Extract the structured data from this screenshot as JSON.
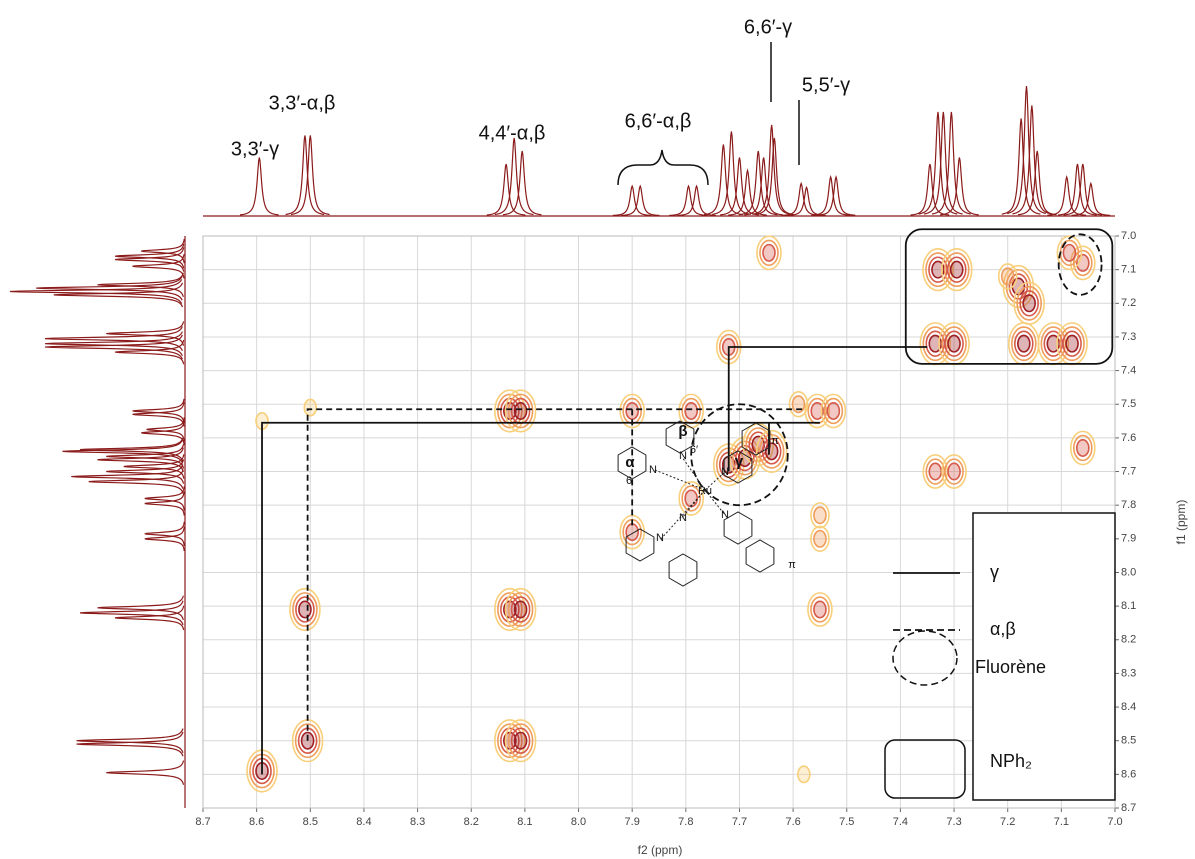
{
  "chart_data": {
    "type": "contour",
    "x_label": "f2 (ppm)",
    "y_label": "f1 (ppm)",
    "xlim": [
      8.7,
      7.0
    ],
    "ylim": [
      7.0,
      8.7
    ],
    "xticks": [
      8.7,
      8.6,
      8.5,
      8.4,
      8.3,
      8.2,
      8.1,
      {
        "value": 8,
        "label": "8.0"
      },
      7.9,
      7.8,
      7.7,
      7.6,
      7.5,
      7.4,
      7.3,
      7.2,
      7.1,
      {
        "value": 7,
        "label": "7.0"
      }
    ],
    "yticks": [
      {
        "value": 7,
        "label": "7.0"
      },
      7.1,
      7.2,
      7.3,
      7.4,
      7.5,
      7.6,
      7.7,
      7.8,
      7.9,
      {
        "value": 8,
        "label": "8.0"
      },
      8.1,
      8.2,
      8.3,
      8.4,
      8.5,
      8.6,
      8.7
    ],
    "grid": true,
    "peaks": {
      "x": [
        8.59,
        8.505,
        8.51,
        8.128,
        8.108,
        8.128,
        8.108,
        8.128,
        8.108,
        8.59,
        8.5,
        7.9,
        7.9,
        7.79,
        7.79,
        7.72,
        7.645,
        7.72,
        7.69,
        7.665,
        7.64,
        7.555,
        7.525,
        7.55,
        7.55,
        7.55,
        7.33,
        7.295,
        7.335,
        7.3,
        7.335,
        7.3,
        7.18,
        7.16,
        7.17,
        7.115,
        7.08,
        7.06,
        7.06,
        7.085,
        7.2,
        7.59,
        7.58
      ],
      "y": [
        8.59,
        8.5,
        8.11,
        8.11,
        8.11,
        8.5,
        8.5,
        7.52,
        7.52,
        7.55,
        7.51,
        7.52,
        7.88,
        7.52,
        7.78,
        7.33,
        7.05,
        7.68,
        7.66,
        7.62,
        7.64,
        7.52,
        7.52,
        7.83,
        7.9,
        8.11,
        7.1,
        7.1,
        7.32,
        7.32,
        7.7,
        7.7,
        7.15,
        7.2,
        7.32,
        7.32,
        7.32,
        7.08,
        7.63,
        7.05,
        7.12,
        7.5,
        8.6
      ],
      "intensity": [
        4,
        4,
        4,
        4,
        4,
        4,
        4,
        4,
        4,
        1,
        1,
        3,
        3,
        3,
        3,
        3,
        3,
        4,
        4,
        4,
        4,
        3,
        3,
        2,
        2,
        3,
        4,
        4,
        4,
        4,
        3,
        3,
        4,
        4,
        4,
        4,
        4,
        3,
        3,
        3,
        2,
        2,
        1
      ]
    },
    "contour_colors": [
      "#f8cf7a",
      "#ef9d5a",
      "#d65a4a",
      "#9e1f25"
    ],
    "projection": {
      "color": "#8b1a1a",
      "ppm": [
        8.595,
        8.51,
        8.5,
        8.135,
        8.12,
        8.105,
        7.9,
        7.885,
        7.795,
        7.78,
        7.73,
        7.715,
        7.7,
        7.685,
        7.665,
        7.655,
        7.64,
        7.635,
        7.585,
        7.575,
        7.53,
        7.52,
        7.345,
        7.33,
        7.32,
        7.305,
        7.29,
        7.175,
        7.165,
        7.155,
        7.145,
        7.09,
        7.07,
        7.06,
        7.045
      ],
      "intensity": [
        45,
        62,
        62,
        40,
        60,
        50,
        23,
        23,
        23,
        23,
        55,
        65,
        45,
        35,
        50,
        45,
        70,
        60,
        25,
        22,
        30,
        30,
        40,
        80,
        80,
        80,
        45,
        75,
        100,
        85,
        50,
        30,
        40,
        40,
        25
      ]
    },
    "connections": [
      {
        "style": "solid",
        "x": [
          8.59,
          8.59,
          7.55
        ],
        "y": [
          8.6,
          7.555,
          7.555
        ]
      },
      {
        "style": "dashed",
        "x": [
          8.505,
          8.505,
          7.58
        ],
        "y": [
          8.5,
          7.515,
          7.515
        ]
      },
      {
        "style": "dashed",
        "x": [
          7.9,
          7.9
        ],
        "y": [
          7.86,
          7.515
        ]
      },
      {
        "style": "solid",
        "x": [
          7.72,
          7.72,
          7.35
        ],
        "y": [
          7.7,
          7.33,
          7.33
        ]
      },
      {
        "style": "solid",
        "x": [
          7.645,
          7.645
        ],
        "y": [
          7.555,
          7.65
        ]
      }
    ],
    "regions": [
      {
        "shape": "ellipse",
        "cx": 7.7,
        "cy": 7.65,
        "rx": 0.09,
        "ry": 0.15
      },
      {
        "shape": "ellipse",
        "cx": 7.065,
        "cy": 7.085,
        "rx": 0.04,
        "ry": 0.09
      },
      {
        "shape": "box",
        "x": [
          7.39,
          7.005
        ],
        "y": [
          6.98,
          7.38
        ]
      }
    ],
    "legend": [
      {
        "label": "γ",
        "style": "solid"
      },
      {
        "label": "α,β",
        "style": "dashed"
      },
      {
        "label": "Fluorène",
        "style": "ellipse"
      },
      {
        "label": "NPh₂",
        "style": "box"
      }
    ],
    "annotations": [
      "3,3′-γ",
      "3,3′-α,β",
      "4,4′-α,β",
      "6,6′-α,β",
      "6,6′-γ",
      "5,5′-γ"
    ],
    "structure_labels": [
      "α",
      "β",
      "γ",
      "6",
      "6′",
      "Ru",
      "N",
      "N",
      "N",
      "N",
      "N",
      "N",
      "π",
      "π"
    ]
  }
}
